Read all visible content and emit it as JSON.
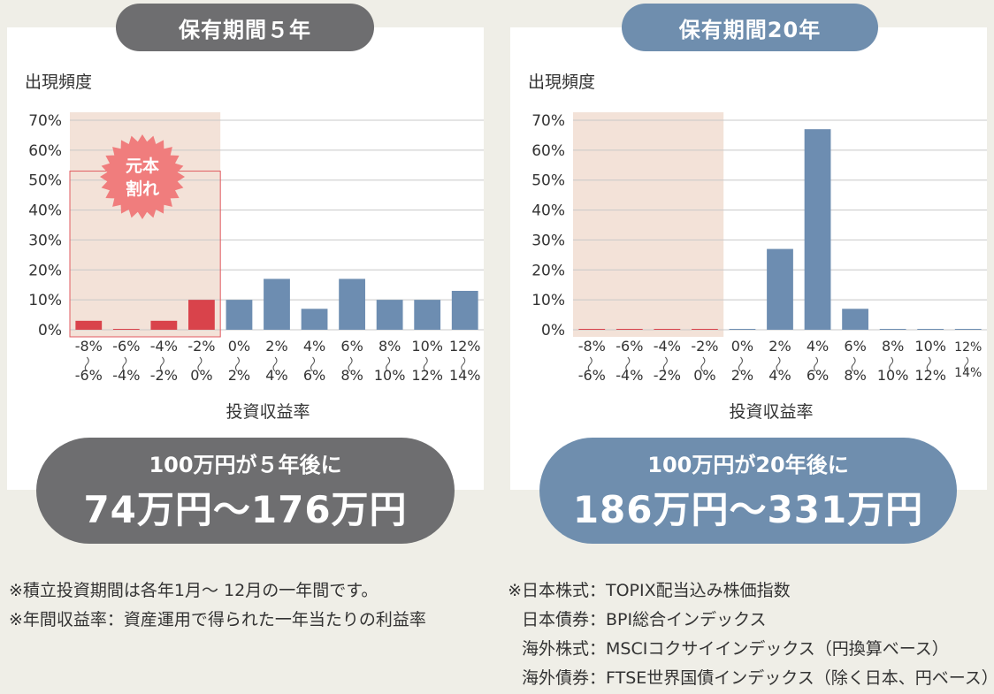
{
  "panels": [
    {
      "title": "保有期間５年",
      "ylabel": "出現頻度",
      "xlabel": "投資収益率",
      "badge": [
        "元本",
        "割れ"
      ],
      "result_line1": "100万円が５年後に",
      "result_line2": "74万円〜176万円"
    },
    {
      "title": "保有期間20年",
      "ylabel": "出現頻度",
      "xlabel": "投資収益率",
      "result_line1": "100万円が20年後に",
      "result_line2": "186万円〜331万円"
    }
  ],
  "chart_data": [
    {
      "type": "bar",
      "title": "保有期間５年",
      "ylabel": "出現頻度",
      "xlabel": "投資収益率",
      "ylim": [
        0,
        70
      ],
      "yticks": [
        "0%",
        "10%",
        "20%",
        "30%",
        "40%",
        "50%",
        "60%",
        "70%"
      ],
      "categories": [
        [
          "-8%",
          "-6%"
        ],
        [
          "-6%",
          "-4%"
        ],
        [
          "-4%",
          "-2%"
        ],
        [
          "-2%",
          "0%"
        ],
        [
          "0%",
          "2%"
        ],
        [
          "2%",
          "4%"
        ],
        [
          "4%",
          "6%"
        ],
        [
          "6%",
          "8%"
        ],
        [
          "8%",
          "10%"
        ],
        [
          "10%",
          "12%"
        ],
        [
          "12%",
          "14%"
        ]
      ],
      "values": [
        3,
        0,
        3,
        10,
        10,
        17,
        7,
        17,
        10,
        10,
        13
      ],
      "grid": true,
      "colors": {
        "loss": "#d9434b",
        "gain": "#6d8db1",
        "shade": "#f3e2d8"
      }
    },
    {
      "type": "bar",
      "title": "保有期間20年",
      "ylabel": "出現頻度",
      "xlabel": "投資収益率",
      "ylim": [
        0,
        70
      ],
      "yticks": [
        "0%",
        "10%",
        "20%",
        "30%",
        "40%",
        "50%",
        "60%",
        "70%"
      ],
      "categories": [
        [
          "-8%",
          "-6%"
        ],
        [
          "-6%",
          "-4%"
        ],
        [
          "-4%",
          "-2%"
        ],
        [
          "-2%",
          "0%"
        ],
        [
          "0%",
          "2%"
        ],
        [
          "2%",
          "4%"
        ],
        [
          "4%",
          "6%"
        ],
        [
          "6%",
          "8%"
        ],
        [
          "8%",
          "10%"
        ],
        [
          "10%",
          "12%"
        ],
        [
          "12%",
          "14%"
        ]
      ],
      "values": [
        0,
        0,
        0,
        0,
        0,
        27,
        67,
        7,
        0,
        0,
        0
      ],
      "grid": true,
      "colors": {
        "loss": "#d9434b",
        "gain": "#6d8db1",
        "shade": "#f3e2d8"
      }
    }
  ],
  "notes_left": [
    "※積立投資期間は各年1月〜 12月の一年間です。",
    "※年間収益率：資産運用で得られた一年当たりの利益率"
  ],
  "notes_right": [
    {
      "label": "※日本株式：",
      "text": "TOPIX配当込み株価指数"
    },
    {
      "label": "日本債券：",
      "text": "BPI総合インデックス"
    },
    {
      "label": "海外株式：",
      "text": "MSCIコクサイインデックス（円換算ベース）"
    },
    {
      "label": "海外債券：",
      "text": "FTSE世界国債インデックス（除く日本、円ベース）"
    }
  ]
}
